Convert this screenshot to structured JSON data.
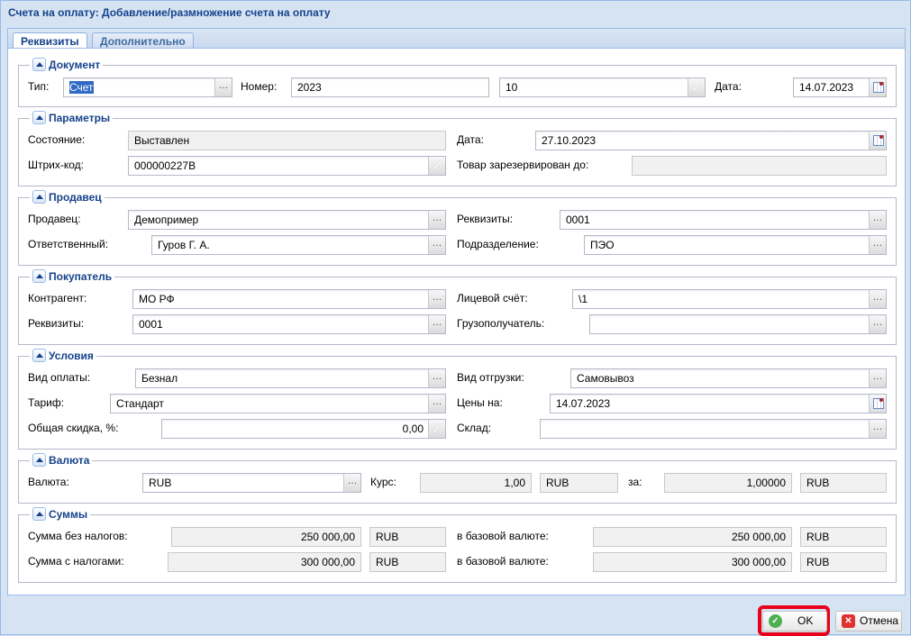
{
  "window": {
    "title": "Счета на оплату: Добавление/размножение счета на оплату"
  },
  "tabs": [
    {
      "label": "Реквизиты",
      "active": true
    },
    {
      "label": "Дополнительно",
      "active": false
    }
  ],
  "document": {
    "legend": "Документ",
    "type_label": "Тип:",
    "type_value": "Счет",
    "number_label": "Номер:",
    "number_value": "2023",
    "series_value": "10",
    "date_label": "Дата:",
    "date_value": "14.07.2023"
  },
  "params": {
    "legend": "Параметры",
    "state_label": "Состояние:",
    "state_value": "Выставлен",
    "date_label": "Дата:",
    "date_value": "27.10.2023",
    "barcode_label": "Штрих-код:",
    "barcode_value": "000000227В",
    "reserved_label": "Товар зарезервирован до:",
    "reserved_value": ""
  },
  "seller": {
    "legend": "Продавец",
    "seller_label": "Продавец:",
    "seller_value": "Демопример",
    "req_label": "Реквизиты:",
    "req_value": "0001",
    "resp_label": "Ответственный:",
    "resp_value": "Гуров Г. А.",
    "dept_label": "Подразделение:",
    "dept_value": "ПЭО"
  },
  "buyer": {
    "legend": "Покупатель",
    "contr_label": "Контрагент:",
    "contr_value": "МО РФ",
    "account_label": "Лицевой счёт:",
    "account_value": "\\1",
    "req_label": "Реквизиты:",
    "req_value": "0001",
    "consignee_label": "Грузополучатель:",
    "consignee_value": ""
  },
  "terms": {
    "legend": "Условия",
    "payment_label": "Вид оплаты:",
    "payment_value": "Безнал",
    "shipment_label": "Вид отгрузки:",
    "shipment_value": "Самовывоз",
    "tariff_label": "Тариф:",
    "tariff_value": "Стандарт",
    "prices_label": "Цены на:",
    "prices_value": "14.07.2023",
    "discount_label": "Общая скидка, %:",
    "discount_value": "0,00",
    "warehouse_label": "Склад:",
    "warehouse_value": ""
  },
  "currency": {
    "legend": "Валюта",
    "currency_label": "Валюта:",
    "currency_value": "RUB",
    "rate_label": "Курс:",
    "rate_value": "1,00",
    "rate_cur": "RUB",
    "per_label": "за:",
    "per_value": "1,00000",
    "per_cur": "RUB"
  },
  "sums": {
    "legend": "Суммы",
    "net_label": "Сумма без налогов:",
    "net_value": "250 000,00",
    "net_cur": "RUB",
    "net_base_label": "в базовой валюте:",
    "net_base_value": "250 000,00",
    "net_base_cur": "RUB",
    "gross_label": "Сумма с налогами:",
    "gross_value": "300 000,00",
    "gross_cur": "RUB",
    "gross_base_label": "в базовой валюте:",
    "gross_base_value": "300 000,00",
    "gross_base_cur": "RUB"
  },
  "buttons": {
    "ok": "OK",
    "cancel": "Отмена"
  },
  "colors": {
    "accent": "#15428b",
    "highlight": "#e8001c"
  }
}
